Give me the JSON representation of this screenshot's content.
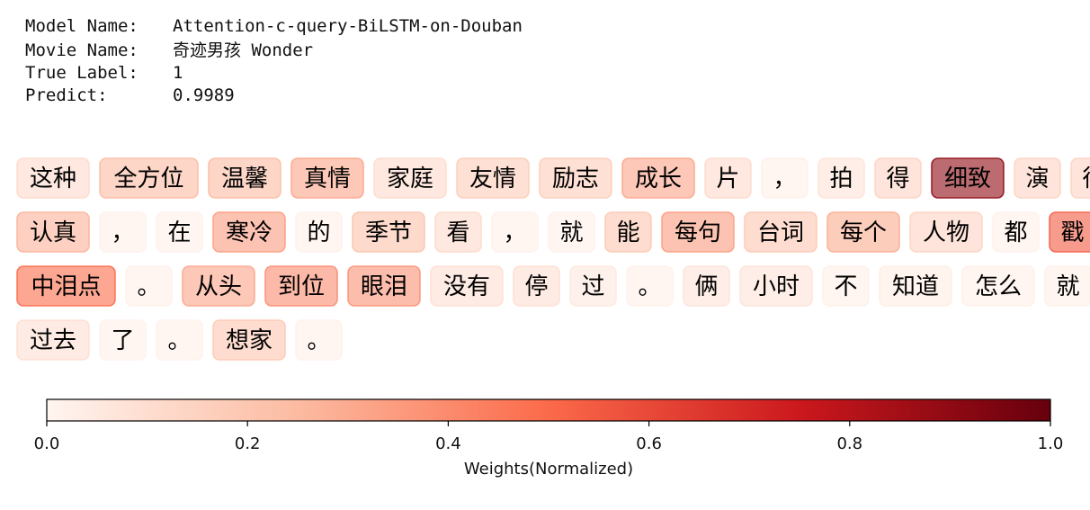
{
  "header": {
    "model_label": "Model Name:",
    "model_value": "Attention-c-query-BiLSTM-on-Douban",
    "movie_label": "Movie Name:",
    "movie_value": "奇迹男孩 Wonder",
    "true_label_label": "True Label:",
    "true_label_value": "1",
    "predict_label": "Predict:",
    "predict_value": "0.9989"
  },
  "tokens": [
    [
      {
        "text": "这种",
        "weight": 0.12
      },
      {
        "text": "全方位",
        "weight": 0.25
      },
      {
        "text": "温馨",
        "weight": 0.25
      },
      {
        "text": "真情",
        "weight": 0.32
      },
      {
        "text": "家庭",
        "weight": 0.12
      },
      {
        "text": "友情",
        "weight": 0.18
      },
      {
        "text": "励志",
        "weight": 0.18
      },
      {
        "text": "成长",
        "weight": 0.32
      },
      {
        "text": "片",
        "weight": 0.12
      },
      {
        "text": "，",
        "weight": 0.03
      },
      {
        "text": "拍",
        "weight": 0.08
      },
      {
        "text": "得",
        "weight": 0.15
      },
      {
        "text": "细致",
        "weight": 0.9
      },
      {
        "text": "演",
        "weight": 0.15
      },
      {
        "text": "得",
        "weight": 0.15
      }
    ],
    [
      {
        "text": "认真",
        "weight": 0.28
      },
      {
        "text": "，",
        "weight": 0.02
      },
      {
        "text": "在",
        "weight": 0.02
      },
      {
        "text": "寒冷",
        "weight": 0.35
      },
      {
        "text": "的",
        "weight": 0.02
      },
      {
        "text": "季节",
        "weight": 0.22
      },
      {
        "text": "看",
        "weight": 0.12
      },
      {
        "text": "，",
        "weight": 0.02
      },
      {
        "text": "就",
        "weight": 0.02
      },
      {
        "text": "能",
        "weight": 0.2
      },
      {
        "text": "每句",
        "weight": 0.35
      },
      {
        "text": "台词",
        "weight": 0.2
      },
      {
        "text": "每个",
        "weight": 0.3
      },
      {
        "text": "人物",
        "weight": 0.15
      },
      {
        "text": "都",
        "weight": 0.02
      },
      {
        "text": "戳",
        "weight": 0.55
      }
    ],
    [
      {
        "text": "中泪点",
        "weight": 0.5
      },
      {
        "text": "。",
        "weight": 0.02
      },
      {
        "text": "从头",
        "weight": 0.32
      },
      {
        "text": "到位",
        "weight": 0.4
      },
      {
        "text": "眼泪",
        "weight": 0.38
      },
      {
        "text": "没有",
        "weight": 0.1
      },
      {
        "text": "停",
        "weight": 0.1
      },
      {
        "text": "过",
        "weight": 0.06
      },
      {
        "text": "。",
        "weight": 0.02
      },
      {
        "text": "俩",
        "weight": 0.08
      },
      {
        "text": "小时",
        "weight": 0.08
      },
      {
        "text": "不",
        "weight": 0.03
      },
      {
        "text": "知道",
        "weight": 0.04
      },
      {
        "text": "怎么",
        "weight": 0.03
      },
      {
        "text": "就",
        "weight": 0.03
      }
    ],
    [
      {
        "text": "过去",
        "weight": 0.1
      },
      {
        "text": "了",
        "weight": 0.02
      },
      {
        "text": "。",
        "weight": 0.02
      },
      {
        "text": "想家",
        "weight": 0.2
      },
      {
        "text": "。",
        "weight": 0.02
      }
    ]
  ],
  "colorbar": {
    "label": "Weights(Normalized)",
    "ticks": [
      "0.0",
      "0.2",
      "0.4",
      "0.6",
      "0.8",
      "1.0"
    ],
    "min": 0,
    "max": 1,
    "colormap": [
      "#fff5f0",
      "#fcbba1",
      "#fb6a4a",
      "#cb181d",
      "#67000d"
    ]
  }
}
